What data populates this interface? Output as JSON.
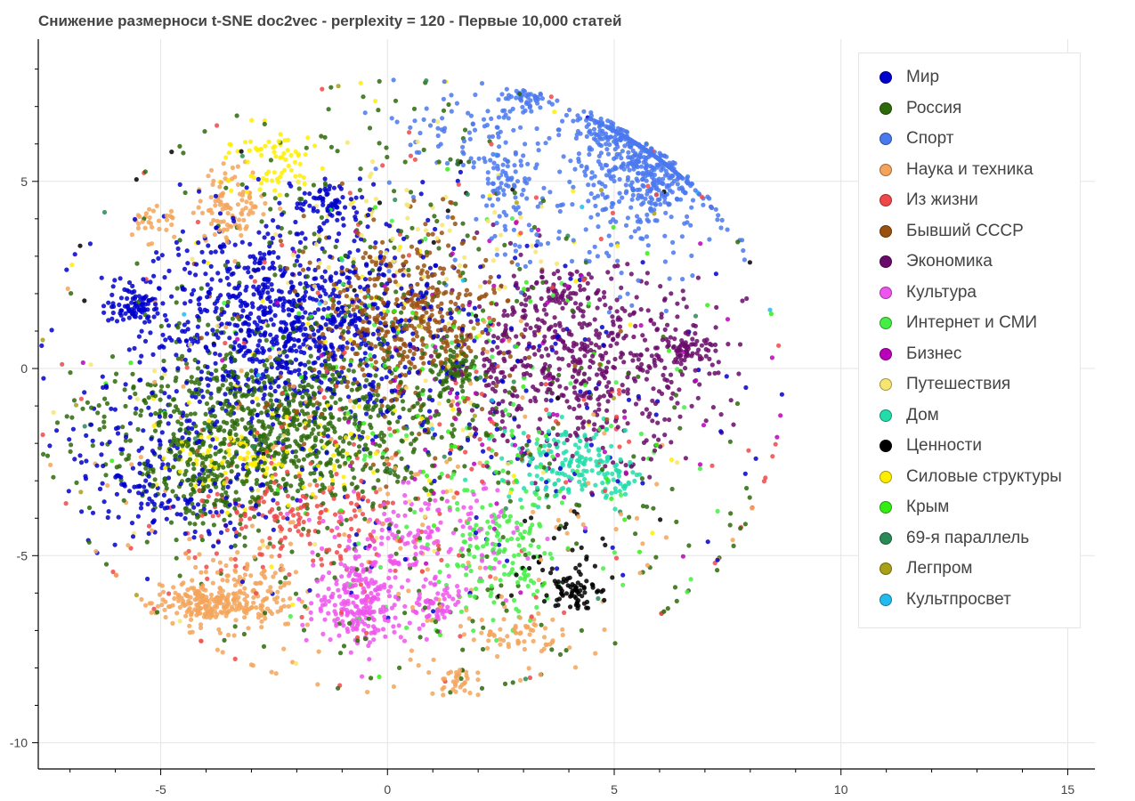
{
  "chart_data": {
    "type": "scatter",
    "title": "Снижение размерноси t-SNE doc2vec - perplexity = 120 - Первые 10,000 статей",
    "xlabel": "",
    "ylabel": "",
    "xlim": [
      -7.7,
      15.6
    ],
    "ylim": [
      -10.7,
      8.8
    ],
    "x_ticks": [
      -5,
      0,
      5,
      10,
      15
    ],
    "y_ticks": [
      5,
      0,
      -5,
      -10
    ],
    "x_tick_labels": [
      "-5",
      "0",
      "5",
      "10",
      "15"
    ],
    "y_tick_labels": [
      "5",
      "0",
      "-5",
      "-10"
    ],
    "grid": true,
    "legend_position": "top-right",
    "series": [
      {
        "name": "Мир",
        "color": "#0000cc",
        "clusters": [
          [
            -2.2,
            1.2,
            1.6,
            1.3,
            900
          ],
          [
            -5.5,
            1.7,
            0.35,
            0.25,
            90
          ],
          [
            -1.3,
            4.4,
            0.4,
            0.3,
            70
          ],
          [
            -5.3,
            -2.2,
            0.9,
            0.9,
            120
          ],
          [
            -4.5,
            -3.6,
            1.0,
            0.5,
            90
          ],
          [
            0.5,
            -1.0,
            3.5,
            2.5,
            260
          ]
        ]
      },
      {
        "name": "Россия",
        "color": "#2d6a0a",
        "clusters": [
          [
            -2.5,
            -1.5,
            1.9,
            1.1,
            900
          ],
          [
            -4.0,
            -3.2,
            0.5,
            0.5,
            90
          ],
          [
            1.5,
            0.0,
            0.3,
            0.3,
            70
          ],
          [
            -1.0,
            3.5,
            2.0,
            2.0,
            160
          ],
          [
            1.5,
            -3.5,
            3.5,
            3.0,
            240
          ]
        ]
      },
      {
        "name": "Спорт",
        "color": "#4a78ee",
        "clusters": [
          [
            5.8,
            5.4,
            0.6,
            0.8,
            420
          ],
          [
            4.9,
            6.4,
            0.4,
            0.4,
            100
          ],
          [
            3.1,
            7.2,
            0.3,
            0.2,
            50
          ],
          [
            2.6,
            5.2,
            0.3,
            0.8,
            80
          ],
          [
            1.4,
            6.4,
            0.9,
            0.6,
            60
          ],
          [
            4.5,
            4.2,
            1.6,
            1.2,
            150
          ]
        ]
      },
      {
        "name": "Наука и техника",
        "color": "#f3a45a",
        "clusters": [
          [
            -4.2,
            -6.3,
            0.5,
            0.25,
            140
          ],
          [
            -3.2,
            -6.0,
            0.6,
            0.5,
            150
          ],
          [
            -3.4,
            4.4,
            0.4,
            0.5,
            100
          ],
          [
            2.8,
            -7.1,
            0.5,
            0.3,
            60
          ],
          [
            1.5,
            -8.3,
            0.2,
            0.2,
            30
          ],
          [
            -5.2,
            3.9,
            0.3,
            0.3,
            30
          ],
          [
            0.0,
            -4.5,
            3.5,
            3.0,
            170
          ]
        ]
      },
      {
        "name": "Из жизни",
        "color": "#f04848",
        "clusters": [
          [
            -1.8,
            -4.2,
            1.3,
            0.8,
            160
          ],
          [
            0.5,
            -1.0,
            4.0,
            3.5,
            160
          ]
        ]
      },
      {
        "name": "Бывший СССР",
        "color": "#9a5110",
        "clusters": [
          [
            0.4,
            1.2,
            1.0,
            1.2,
            400
          ],
          [
            0.0,
            0.0,
            2.0,
            2.0,
            90
          ]
        ]
      },
      {
        "name": "Экономика",
        "color": "#6a0a6a",
        "clusters": [
          [
            4.2,
            0.2,
            1.5,
            1.2,
            600
          ],
          [
            6.6,
            0.5,
            0.3,
            0.2,
            60
          ],
          [
            3.8,
            2.0,
            0.4,
            0.3,
            40
          ]
        ]
      },
      {
        "name": "Культура",
        "color": "#ee55ee",
        "clusters": [
          [
            -0.6,
            -6.2,
            0.5,
            0.6,
            230
          ],
          [
            1.1,
            -6.4,
            0.3,
            0.3,
            60
          ],
          [
            0.8,
            -4.5,
            1.0,
            0.7,
            160
          ]
        ]
      },
      {
        "name": "Интернет и СМИ",
        "color": "#44ee44",
        "clusters": [
          [
            2.5,
            -5.0,
            0.7,
            1.0,
            150
          ],
          [
            2.0,
            -2.0,
            2.5,
            2.5,
            100
          ]
        ]
      },
      {
        "name": "Бизнес",
        "color": "#bb00bb",
        "clusters": [
          [
            2.5,
            -0.5,
            3.0,
            2.5,
            80
          ]
        ]
      },
      {
        "name": "Путешествия",
        "color": "#f7e570",
        "clusters": [
          [
            0.5,
            3.5,
            1.5,
            1.2,
            80
          ],
          [
            -1.0,
            -2.0,
            3.0,
            2.0,
            50
          ]
        ]
      },
      {
        "name": "Дом",
        "color": "#22ddaa",
        "clusters": [
          [
            3.9,
            -2.5,
            0.7,
            0.5,
            140
          ],
          [
            5.0,
            -2.9,
            0.3,
            0.3,
            40
          ]
        ]
      },
      {
        "name": "Ценности",
        "color": "#000000",
        "clusters": [
          [
            4.1,
            -5.9,
            0.25,
            0.25,
            60
          ],
          [
            3.7,
            -5.0,
            0.7,
            0.8,
            40
          ],
          [
            -2.0,
            3.0,
            4.0,
            3.0,
            20
          ]
        ]
      },
      {
        "name": "Силовые структуры",
        "color": "#ffee00",
        "clusters": [
          [
            -2.6,
            5.5,
            0.6,
            0.5,
            70
          ],
          [
            -2.8,
            -2.4,
            1.0,
            0.5,
            110
          ],
          [
            0.0,
            1.0,
            3.0,
            3.0,
            60
          ]
        ]
      },
      {
        "name": "Крым",
        "color": "#33ee11",
        "clusters": [
          [
            1.0,
            -1.0,
            3.0,
            3.0,
            80
          ]
        ]
      },
      {
        "name": "69-я параллель",
        "color": "#2a8a55",
        "clusters": [
          [
            0.0,
            0.0,
            4.0,
            4.0,
            25
          ]
        ]
      },
      {
        "name": "Легпром",
        "color": "#a9a015",
        "clusters": [
          [
            0.0,
            0.0,
            4.0,
            4.0,
            20
          ]
        ]
      },
      {
        "name": "Культпросвет",
        "color": "#22bbee",
        "clusters": [
          [
            0.0,
            0.0,
            4.0,
            4.0,
            15
          ]
        ]
      }
    ]
  },
  "legend": {
    "items": [
      {
        "label": "Мир",
        "color": "#0000cc"
      },
      {
        "label": "Россия",
        "color": "#2d6a0a"
      },
      {
        "label": "Спорт",
        "color": "#4a78ee"
      },
      {
        "label": "Наука и техника",
        "color": "#f3a45a"
      },
      {
        "label": "Из жизни",
        "color": "#f04848"
      },
      {
        "label": "Бывший СССР",
        "color": "#9a5110"
      },
      {
        "label": "Экономика",
        "color": "#6a0a6a"
      },
      {
        "label": "Культура",
        "color": "#ee55ee"
      },
      {
        "label": "Интернет и СМИ",
        "color": "#44ee44"
      },
      {
        "label": "Бизнес",
        "color": "#bb00bb"
      },
      {
        "label": "Путешествия",
        "color": "#f7e570"
      },
      {
        "label": "Дом",
        "color": "#22ddaa"
      },
      {
        "label": "Ценности",
        "color": "#000000"
      },
      {
        "label": "Силовые структуры",
        "color": "#ffee00"
      },
      {
        "label": "Крым",
        "color": "#33ee11"
      },
      {
        "label": "69-я параллель",
        "color": "#2a8a55"
      },
      {
        "label": "Легпром",
        "color": "#a9a015"
      },
      {
        "label": "Культпросвет",
        "color": "#22bbee"
      }
    ]
  }
}
